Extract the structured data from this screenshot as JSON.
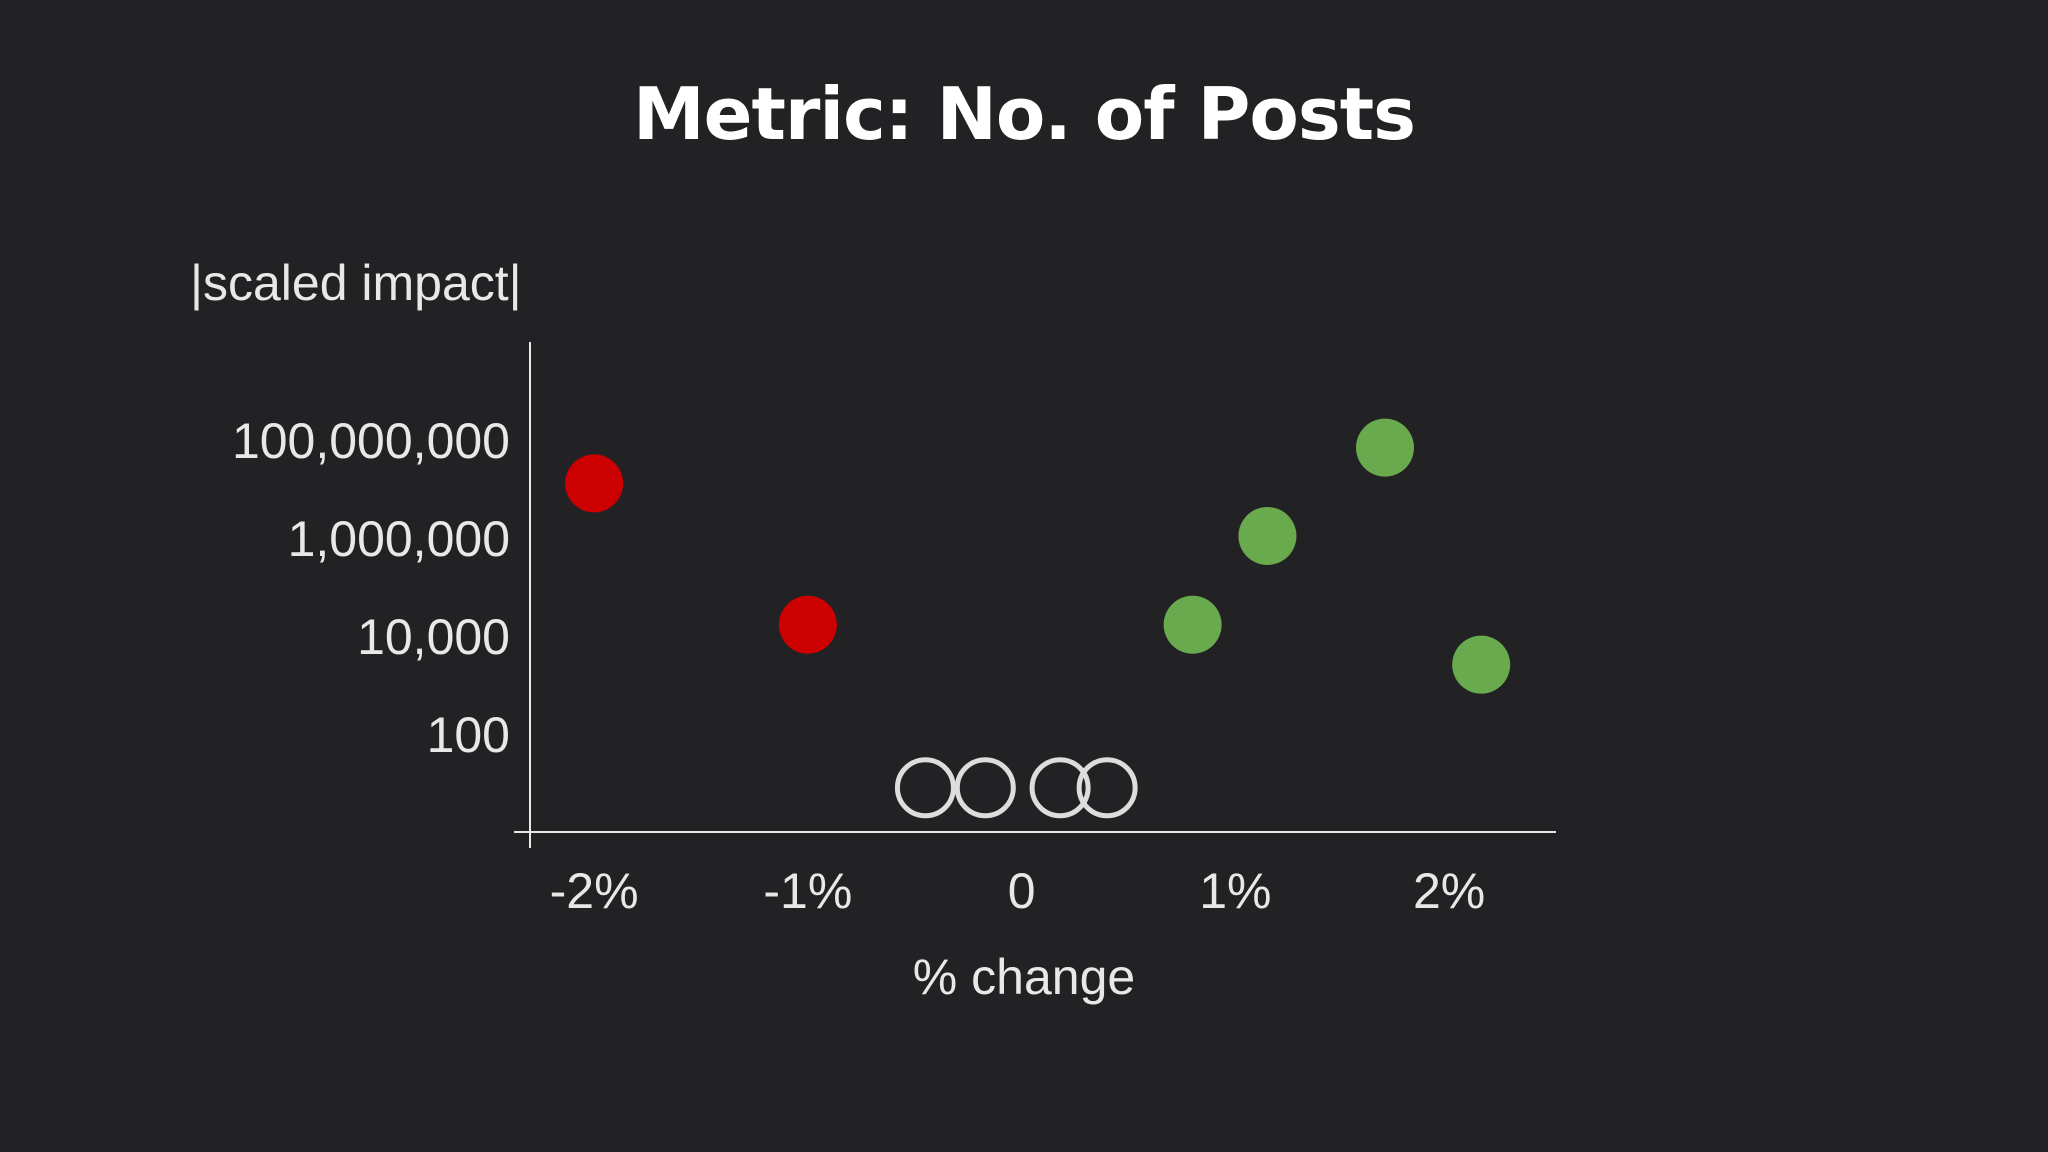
{
  "chart_data": {
    "type": "scatter",
    "title": "Metric: No. of Posts",
    "xlabel": "% change",
    "ylabel": "|scaled impact|",
    "y_scale": "log",
    "xlim": [
      -2.3,
      2.5
    ],
    "ylim": [
      1,
      10000000000
    ],
    "x_ticks": [
      {
        "value": -2,
        "label": "-2%"
      },
      {
        "value": -1,
        "label": "-1%"
      },
      {
        "value": 0,
        "label": "0"
      },
      {
        "value": 1,
        "label": "1%"
      },
      {
        "value": 2,
        "label": "2%"
      }
    ],
    "y_ticks": [
      {
        "value": 100,
        "label": "100"
      },
      {
        "value": 10000,
        "label": "10,000"
      },
      {
        "value": 1000000,
        "label": "1,000,000"
      },
      {
        "value": 100000000,
        "label": "100,000,000"
      }
    ],
    "grid": false,
    "legend": "none",
    "series": [
      {
        "color": "#cc0000",
        "fill": "filled",
        "points": [
          {
            "x": -2.0,
            "y": 13000000
          },
          {
            "x": -1.0,
            "y": 17000
          }
        ]
      },
      {
        "color": "#6aaa4e",
        "fill": "filled",
        "points": [
          {
            "x": 0.8,
            "y": 17000
          },
          {
            "x": 1.15,
            "y": 1100000
          },
          {
            "x": 1.7,
            "y": 70000000
          },
          {
            "x": 2.15,
            "y": 2600
          }
        ]
      },
      {
        "color": "#dddddd",
        "fill": "outline",
        "points": [
          {
            "x": -0.45,
            "y": 8
          },
          {
            "x": -0.17,
            "y": 8
          },
          {
            "x": 0.18,
            "y": 8
          },
          {
            "x": 0.4,
            "y": 8
          }
        ]
      }
    ]
  }
}
